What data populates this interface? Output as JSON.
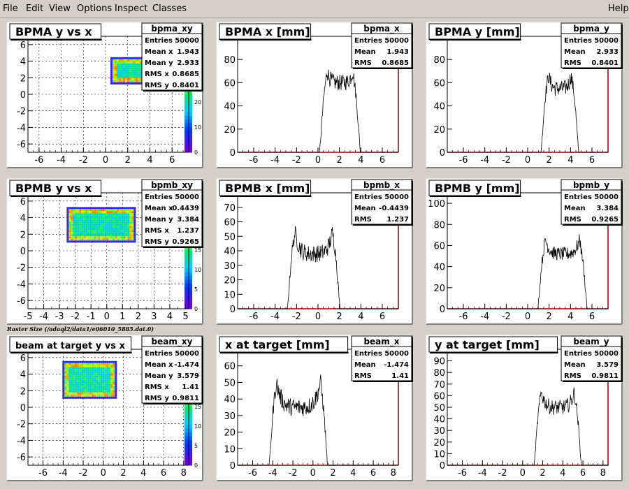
{
  "menu": {
    "file": "File",
    "edit": "Edit",
    "view": "View",
    "options": "Options",
    "inspect": "Inspect",
    "classes": "Classes",
    "help": "Help"
  },
  "caption": "Raster Size (/adaql2/data1/e06010_5885.dat.0)",
  "colors": {
    "background": "#d4d0c8",
    "pad": "#ffffff",
    "axis": "#8b0000",
    "line": "#000000"
  },
  "chart_data": [
    {
      "type": "heatmap",
      "title": "BPMA y vs x",
      "xlim": [
        -7,
        7.5
      ],
      "ylim": [
        -7,
        7
      ],
      "xticks": [
        "-6",
        "-4",
        "-2",
        "0",
        "2",
        "4",
        "6"
      ],
      "yticks": [
        "-6",
        "-4",
        "-2",
        "0",
        "2",
        "4",
        "6"
      ],
      "zticks": [
        "0",
        "10",
        "20",
        "30"
      ],
      "region": {
        "x": [
          0.5,
          3.6
        ],
        "y": [
          1.6,
          4.4
        ]
      },
      "stats": {
        "name": "bpma_xy",
        "rows": [
          [
            "Entries",
            "50000"
          ],
          [
            "Mean x",
            "1.943"
          ],
          [
            "Mean y",
            "2.933"
          ],
          [
            "RMS x",
            "0.8685"
          ],
          [
            "RMS y",
            "0.8401"
          ]
        ]
      }
    },
    {
      "type": "line",
      "title": "BPMA x [mm]",
      "xlim": [
        -7.5,
        7.5
      ],
      "ylim": [
        0,
        100
      ],
      "xticks": [
        "-6",
        "-4",
        "-2",
        "0",
        "2",
        "4",
        "6"
      ],
      "yticks": [
        "0",
        "20",
        "40",
        "60",
        "80",
        "100"
      ],
      "profile": {
        "lo": 0.5,
        "hi": 3.6,
        "edge": 0.35,
        "peak": 88,
        "dip": 60,
        "noise": 14
      },
      "stats": {
        "name": "bpma_x",
        "rows": [
          [
            "Entries",
            "50000"
          ],
          [
            "Mean",
            "1.943"
          ],
          [
            "RMS",
            "0.8685"
          ]
        ]
      }
    },
    {
      "type": "line",
      "title": "BPMA y [mm]",
      "xlim": [
        -7.5,
        7.5
      ],
      "ylim": [
        0,
        100
      ],
      "xticks": [
        "-6",
        "-4",
        "-2",
        "0",
        "2",
        "4",
        "6"
      ],
      "yticks": [
        "0",
        "20",
        "40",
        "60",
        "80",
        "100"
      ],
      "profile": {
        "lo": 1.6,
        "hi": 4.4,
        "edge": 0.35,
        "peak": 90,
        "dip": 55,
        "noise": 14
      },
      "stats": {
        "name": "bpma_y",
        "rows": [
          [
            "Entries",
            "50000"
          ],
          [
            "Mean",
            "2.933"
          ],
          [
            "RMS",
            "0.8401"
          ]
        ]
      }
    },
    {
      "type": "heatmap",
      "title": "BPMB y vs x",
      "xlim": [
        -5,
        5.2
      ],
      "ylim": [
        -7,
        7
      ],
      "xticks": [
        "-5",
        "-4",
        "-3",
        "-2",
        "-1",
        "0",
        "1",
        "2",
        "3",
        "4",
        "5"
      ],
      "yticks": [
        "-6",
        "-4",
        "-2",
        "0",
        "2",
        "4",
        "6"
      ],
      "zticks": [
        "0",
        "5",
        "10",
        "15",
        "20"
      ],
      "region": {
        "x": [
          -2.5,
          1.7
        ],
        "y": [
          1.3,
          5.2
        ]
      },
      "stats": {
        "name": "bpmb_xy",
        "rows": [
          [
            "Entries",
            "50000"
          ],
          [
            "Mean x",
            "-0.4439"
          ],
          [
            "Mean y",
            "3.384"
          ],
          [
            "RMS x",
            "1.237"
          ],
          [
            "RMS y",
            "0.9265"
          ]
        ]
      }
    },
    {
      "type": "line",
      "title": "BPMB x [mm]",
      "xlim": [
        -7.5,
        7.5
      ],
      "ylim": [
        0,
        80
      ],
      "xticks": [
        "-6",
        "-4",
        "-2",
        "0",
        "2",
        "4",
        "6"
      ],
      "yticks": [
        "0",
        "10",
        "20",
        "30",
        "40",
        "50",
        "60",
        "70",
        "80"
      ],
      "profile": {
        "lo": -2.5,
        "hi": 1.7,
        "edge": 0.35,
        "peak": 68,
        "dip": 38,
        "noise": 12
      },
      "stats": {
        "name": "bpmb_x",
        "rows": [
          [
            "Entries",
            "50000"
          ],
          [
            "Mean",
            "-0.4439"
          ],
          [
            "RMS",
            "1.237"
          ]
        ]
      }
    },
    {
      "type": "line",
      "title": "BPMB y [mm]",
      "xlim": [
        -7.5,
        7.5
      ],
      "ylim": [
        0,
        110
      ],
      "xticks": [
        "-6",
        "-4",
        "-2",
        "0",
        "2",
        "4",
        "6"
      ],
      "yticks": [
        "0",
        "20",
        "40",
        "60",
        "80",
        "100"
      ],
      "profile": {
        "lo": 1.3,
        "hi": 5.2,
        "edge": 0.35,
        "peak": 82,
        "dip": 52,
        "noise": 13
      },
      "stats": {
        "name": "bpmb_y",
        "rows": [
          [
            "Entries",
            "50000"
          ],
          [
            "Mean",
            "3.384"
          ],
          [
            "RMS",
            "0.9265"
          ]
        ]
      }
    },
    {
      "type": "heatmap",
      "title": "beam at target y vs x",
      "xlim": [
        -7.5,
        8.5
      ],
      "ylim": [
        -7,
        7
      ],
      "xticks": [
        "-6",
        "-4",
        "-2",
        "0",
        "2",
        "4",
        "6",
        "8"
      ],
      "yticks": [
        "-6",
        "-4",
        "-2",
        "0",
        "2",
        "4",
        "6"
      ],
      "zticks": [
        "0",
        "5",
        "10",
        "15",
        "20"
      ],
      "region": {
        "x": [
          -4.0,
          1.1
        ],
        "y": [
          1.5,
          5.5
        ]
      },
      "stats": {
        "name": "beam_xy",
        "rows": [
          [
            "Entries",
            "50000"
          ],
          [
            "Mean x",
            "-1.474"
          ],
          [
            "Mean y",
            "3.579"
          ],
          [
            "RMS x",
            "1.41"
          ],
          [
            "RMS y",
            "0.9811"
          ]
        ]
      }
    },
    {
      "type": "line",
      "title": "x at target [mm]",
      "xlim": [
        -7.5,
        8.5
      ],
      "ylim": [
        0,
        70
      ],
      "xticks": [
        "-6",
        "-4",
        "-2",
        "0",
        "2",
        "4",
        "6",
        "8"
      ],
      "yticks": [
        "0",
        "10",
        "20",
        "30",
        "40",
        "50",
        "60",
        "70"
      ],
      "profile": {
        "lo": -4.0,
        "hi": 1.1,
        "edge": 0.35,
        "peak": 62,
        "dip": 35,
        "noise": 11
      },
      "stats": {
        "name": "beam_x",
        "rows": [
          [
            "Entries",
            "50000"
          ],
          [
            "Mean",
            "-1.474"
          ],
          [
            "RMS",
            "1.41"
          ]
        ]
      }
    },
    {
      "type": "line",
      "title": "y at target [mm]",
      "xlim": [
        -7.5,
        8.5
      ],
      "ylim": [
        0,
        100
      ],
      "xticks": [
        "-6",
        "-4",
        "-2",
        "0",
        "2",
        "4",
        "6",
        "8"
      ],
      "yticks": [
        "0",
        "10",
        "20",
        "30",
        "40",
        "50",
        "60",
        "70",
        "80",
        "90"
      ],
      "profile": {
        "lo": 1.5,
        "hi": 5.5,
        "edge": 0.35,
        "peak": 78,
        "dip": 50,
        "noise": 13
      },
      "stats": {
        "name": "beam_y",
        "rows": [
          [
            "Entries",
            "50000"
          ],
          [
            "Mean",
            "3.579"
          ],
          [
            "RMS",
            "0.9811"
          ]
        ]
      }
    }
  ]
}
